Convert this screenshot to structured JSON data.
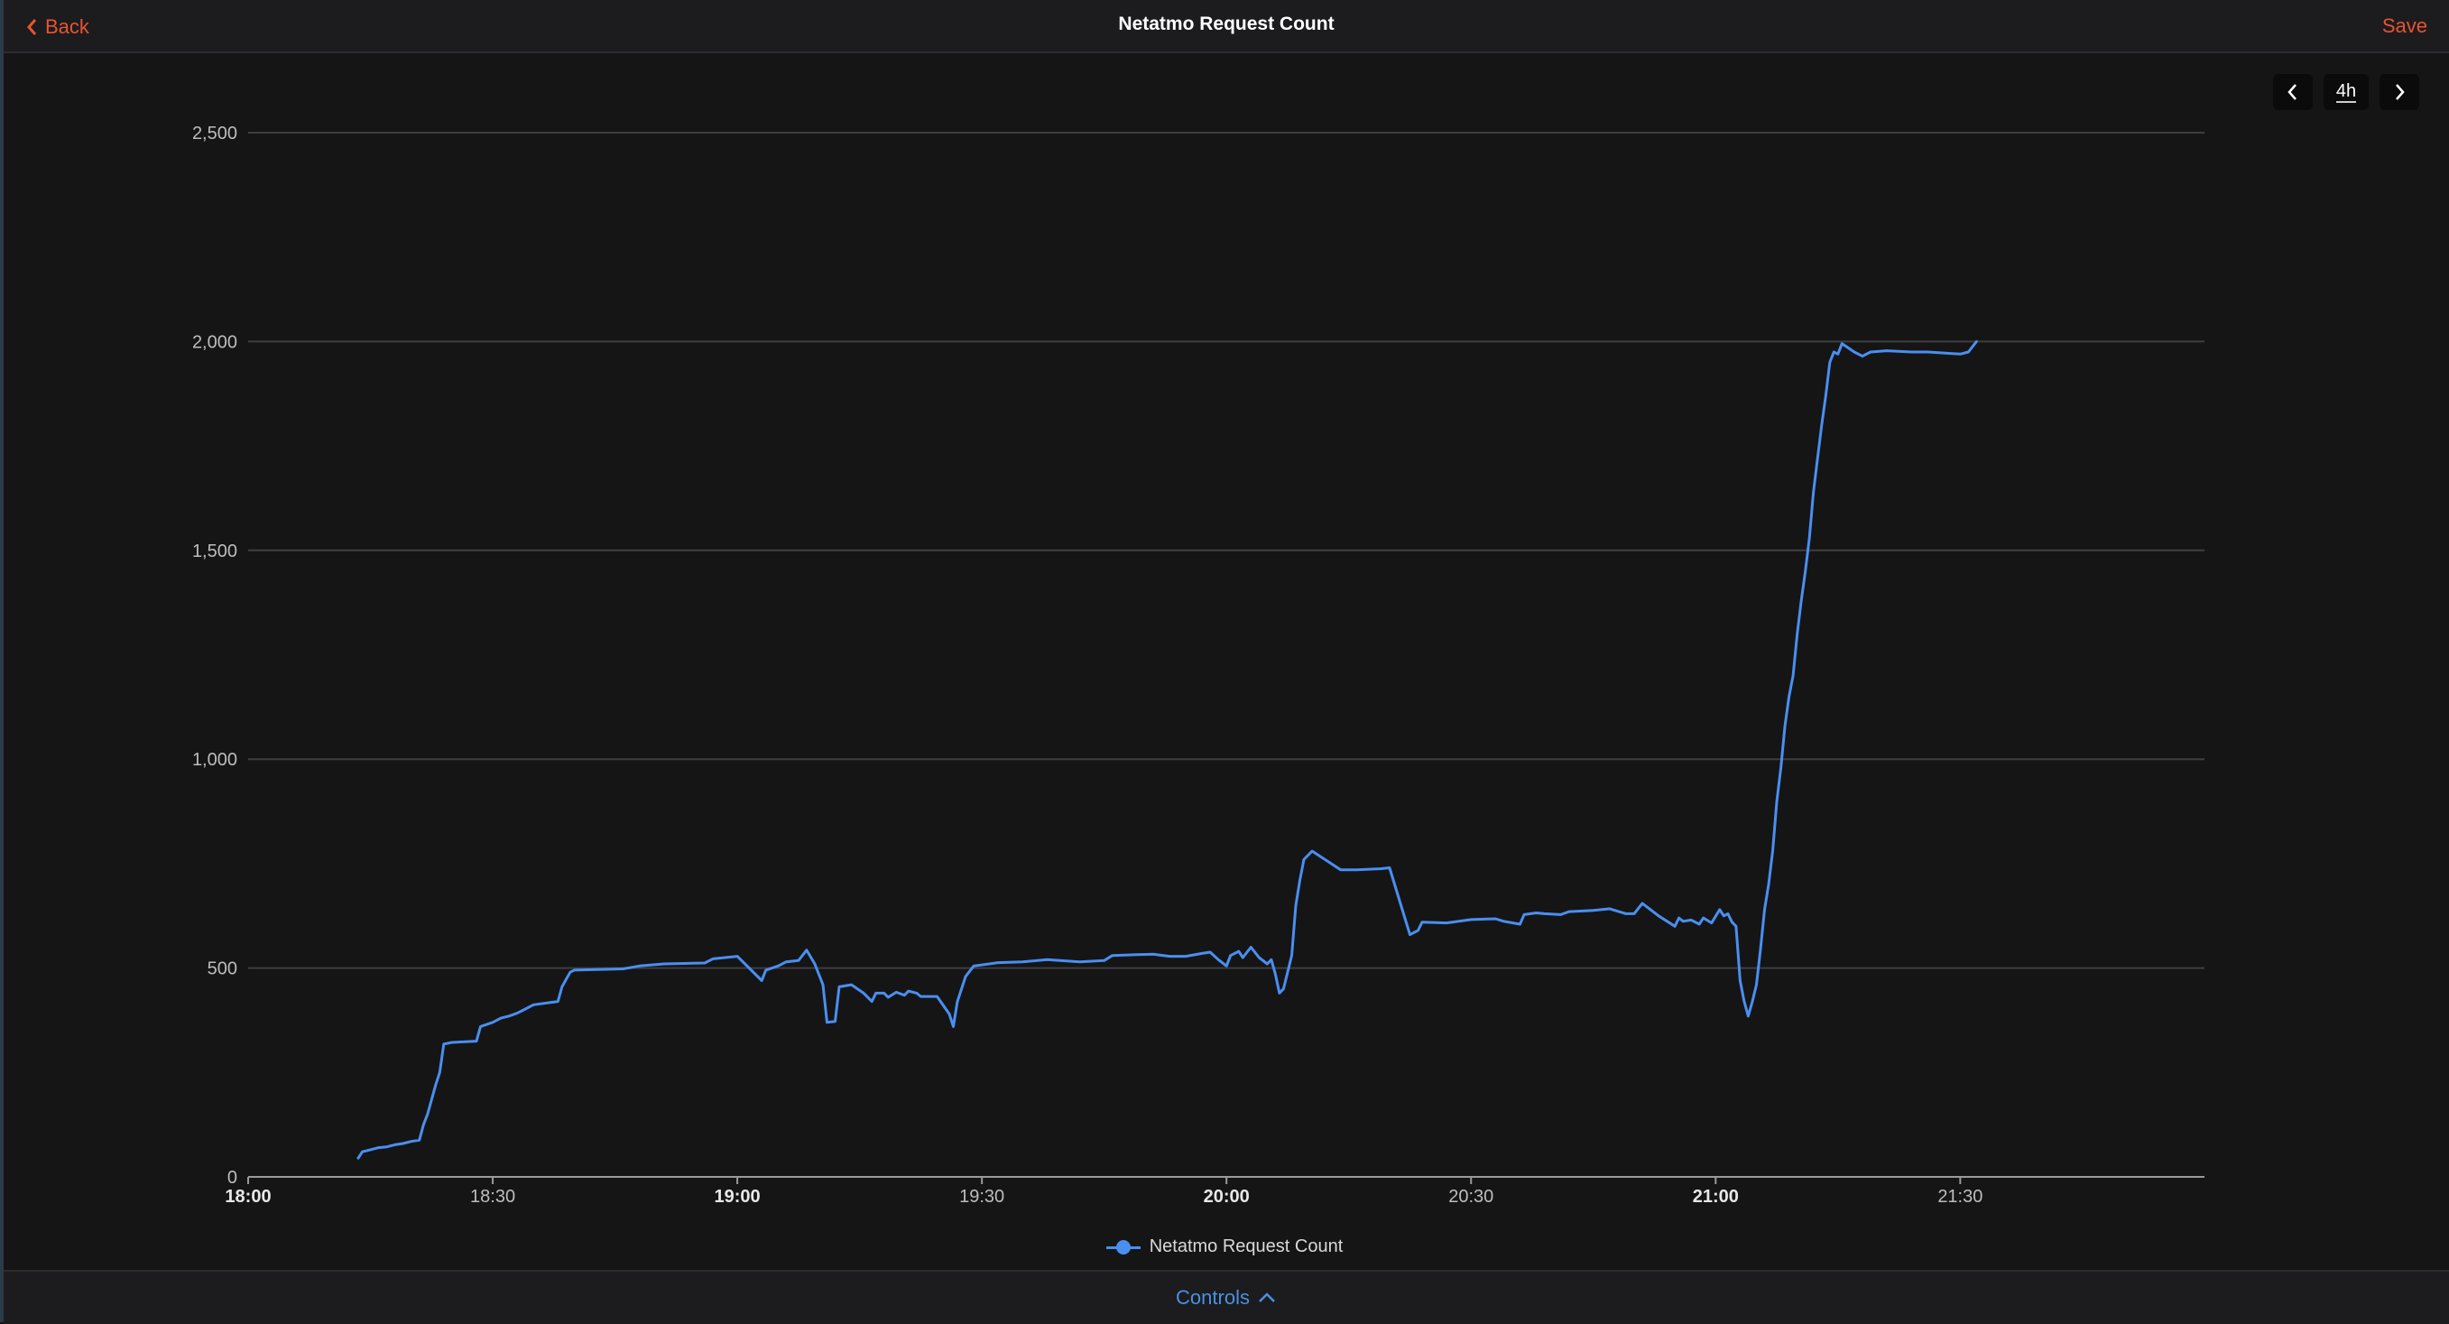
{
  "header": {
    "back_label": "Back",
    "title": "Netatmo Request Count",
    "save_label": "Save"
  },
  "range_controls": {
    "range_label": "4h"
  },
  "legend": {
    "label": "Netatmo Request Count"
  },
  "footer": {
    "controls_label": "Controls"
  },
  "colors": {
    "accent": "#e8542e",
    "series": "#4a8ff0",
    "link": "#4a90e2",
    "background": "#151516"
  },
  "icons": {
    "back": "chevron-left-icon",
    "prev": "chevron-left-icon",
    "next": "chevron-right-icon",
    "controls": "chevron-up-icon"
  },
  "chart_data": {
    "type": "line",
    "title": "",
    "xlabel": "",
    "ylabel": "",
    "xlim": [
      "18:00",
      "22:00"
    ],
    "ylim": [
      0,
      2500
    ],
    "y_ticks": [
      0,
      500,
      1000,
      1500,
      2000,
      2500
    ],
    "y_tick_labels": [
      "0",
      "500",
      "1,000",
      "1,500",
      "2,000",
      "2,500"
    ],
    "x_ticks": [
      {
        "label": "18:00",
        "time": "18:00",
        "bold": true
      },
      {
        "label": "18:30",
        "time": "18:30",
        "bold": false
      },
      {
        "label": "19:00",
        "time": "19:00",
        "bold": true
      },
      {
        "label": "19:30",
        "time": "19:30",
        "bold": false
      },
      {
        "label": "20:00",
        "time": "20:00",
        "bold": true
      },
      {
        "label": "20:30",
        "time": "20:30",
        "bold": false
      },
      {
        "label": "21:00",
        "time": "21:00",
        "bold": true
      },
      {
        "label": "21:30",
        "time": "21:30",
        "bold": false
      }
    ],
    "grid": true,
    "legend_position": "bottom",
    "series": [
      {
        "name": "Netatmo Request Count",
        "points": [
          [
            "18:13:30",
            45
          ],
          [
            "18:14:00",
            60
          ],
          [
            "18:15:00",
            65
          ],
          [
            "18:16:00",
            70
          ],
          [
            "18:17:00",
            72
          ],
          [
            "18:18:00",
            77
          ],
          [
            "18:19:00",
            80
          ],
          [
            "18:20:00",
            85
          ],
          [
            "18:21:00",
            88
          ],
          [
            "18:21:30",
            125
          ],
          [
            "18:22:00",
            150
          ],
          [
            "18:23:00",
            220
          ],
          [
            "18:23:30",
            250
          ],
          [
            "18:24:00",
            318
          ],
          [
            "18:25:00",
            322
          ],
          [
            "18:28:00",
            325
          ],
          [
            "18:28:30",
            360
          ],
          [
            "18:30:00",
            370
          ],
          [
            "18:31:00",
            380
          ],
          [
            "18:32:00",
            385
          ],
          [
            "18:33:00",
            392
          ],
          [
            "18:34:00",
            402
          ],
          [
            "18:35:00",
            412
          ],
          [
            "18:38:00",
            420
          ],
          [
            "18:38:30",
            455
          ],
          [
            "18:39:30",
            490
          ],
          [
            "18:40:00",
            495
          ],
          [
            "18:46:00",
            498
          ],
          [
            "18:48:00",
            505
          ],
          [
            "18:51:00",
            510
          ],
          [
            "18:56:00",
            512
          ],
          [
            "18:57:00",
            522
          ],
          [
            "19:00:00",
            528
          ],
          [
            "19:03:00",
            470
          ],
          [
            "19:03:30",
            495
          ],
          [
            "19:05:00",
            505
          ],
          [
            "19:06:00",
            515
          ],
          [
            "19:07:30",
            518
          ],
          [
            "19:08:30",
            543
          ],
          [
            "19:09:30",
            510
          ],
          [
            "19:10:30",
            460
          ],
          [
            "19:11:00",
            370
          ],
          [
            "19:12:00",
            372
          ],
          [
            "19:12:30",
            455
          ],
          [
            "19:14:00",
            460
          ],
          [
            "19:15:30",
            440
          ],
          [
            "19:16:30",
            420
          ],
          [
            "19:17:00",
            440
          ],
          [
            "19:18:00",
            440
          ],
          [
            "19:18:30",
            430
          ],
          [
            "19:19:30",
            442
          ],
          [
            "19:20:30",
            435
          ],
          [
            "19:21:00",
            445
          ],
          [
            "19:22:00",
            440
          ],
          [
            "19:22:30",
            432
          ],
          [
            "19:24:30",
            432
          ],
          [
            "19:26:00",
            390
          ],
          [
            "19:26:30",
            360
          ],
          [
            "19:27:00",
            420
          ],
          [
            "19:28:00",
            480
          ],
          [
            "19:29:00",
            505
          ],
          [
            "19:32:00",
            513
          ],
          [
            "19:35:00",
            515
          ],
          [
            "19:38:00",
            520
          ],
          [
            "19:42:00",
            515
          ],
          [
            "19:45:00",
            518
          ],
          [
            "19:46:00",
            530
          ],
          [
            "19:49:00",
            532
          ],
          [
            "19:51:00",
            533
          ],
          [
            "19:53:00",
            528
          ],
          [
            "19:55:00",
            528
          ],
          [
            "19:57:00",
            535
          ],
          [
            "19:58:00",
            538
          ],
          [
            "19:59:00",
            520
          ],
          [
            "20:00:00",
            505
          ],
          [
            "20:00:30",
            530
          ],
          [
            "20:01:30",
            540
          ],
          [
            "20:02:00",
            525
          ],
          [
            "20:03:00",
            550
          ],
          [
            "20:04:00",
            525
          ],
          [
            "20:05:00",
            510
          ],
          [
            "20:05:30",
            520
          ],
          [
            "20:06:00",
            485
          ],
          [
            "20:06:30",
            440
          ],
          [
            "20:07:00",
            450
          ],
          [
            "20:08:00",
            530
          ],
          [
            "20:08:30",
            650
          ],
          [
            "20:09:00",
            710
          ],
          [
            "20:09:30",
            760
          ],
          [
            "20:10:30",
            780
          ],
          [
            "20:14:00",
            735
          ],
          [
            "20:16:00",
            735
          ],
          [
            "20:19:00",
            738
          ],
          [
            "20:20:00",
            740
          ],
          [
            "20:22:30",
            580
          ],
          [
            "20:23:30",
            590
          ],
          [
            "20:24:00",
            610
          ],
          [
            "20:27:00",
            608
          ],
          [
            "20:30:00",
            616
          ],
          [
            "20:33:00",
            618
          ],
          [
            "20:34:00",
            612
          ],
          [
            "20:36:00",
            605
          ],
          [
            "20:36:30",
            628
          ],
          [
            "20:38:00",
            632
          ],
          [
            "20:39:00",
            630
          ],
          [
            "20:41:00",
            628
          ],
          [
            "20:42:00",
            635
          ],
          [
            "20:45:00",
            638
          ],
          [
            "20:47:00",
            642
          ],
          [
            "20:49:00",
            630
          ],
          [
            "20:50:00",
            630
          ],
          [
            "20:51:00",
            655
          ],
          [
            "20:53:00",
            625
          ],
          [
            "20:55:00",
            600
          ],
          [
            "20:55:30",
            620
          ],
          [
            "20:56:00",
            612
          ],
          [
            "20:57:00",
            615
          ],
          [
            "20:58:00",
            605
          ],
          [
            "20:58:30",
            620
          ],
          [
            "20:59:30",
            608
          ],
          [
            "21:00:30",
            640
          ],
          [
            "21:01:00",
            625
          ],
          [
            "21:01:30",
            630
          ],
          [
            "21:02:00",
            610
          ],
          [
            "21:02:30",
            600
          ],
          [
            "21:03:00",
            470
          ],
          [
            "21:03:30",
            420
          ],
          [
            "21:04:00",
            385
          ],
          [
            "21:04:30",
            420
          ],
          [
            "21:05:00",
            460
          ],
          [
            "21:05:30",
            545
          ],
          [
            "21:06:00",
            640
          ],
          [
            "21:06:30",
            700
          ],
          [
            "21:07:00",
            780
          ],
          [
            "21:07:30",
            900
          ],
          [
            "21:08:00",
            980
          ],
          [
            "21:08:30",
            1080
          ],
          [
            "21:09:00",
            1150
          ],
          [
            "21:09:30",
            1200
          ],
          [
            "21:10:00",
            1300
          ],
          [
            "21:10:30",
            1380
          ],
          [
            "21:11:00",
            1450
          ],
          [
            "21:11:30",
            1530
          ],
          [
            "21:12:00",
            1640
          ],
          [
            "21:12:30",
            1720
          ],
          [
            "21:13:00",
            1800
          ],
          [
            "21:13:30",
            1870
          ],
          [
            "21:14:00",
            1950
          ],
          [
            "21:14:30",
            1975
          ],
          [
            "21:15:00",
            1970
          ],
          [
            "21:15:30",
            1995
          ],
          [
            "21:17:00",
            1975
          ],
          [
            "21:18:00",
            1965
          ],
          [
            "21:19:00",
            1975
          ],
          [
            "21:21:00",
            1978
          ],
          [
            "21:24:00",
            1975
          ],
          [
            "21:26:00",
            1975
          ],
          [
            "21:30:00",
            1970
          ],
          [
            "21:31:00",
            1975
          ],
          [
            "21:32:00",
            2000
          ]
        ]
      }
    ]
  }
}
